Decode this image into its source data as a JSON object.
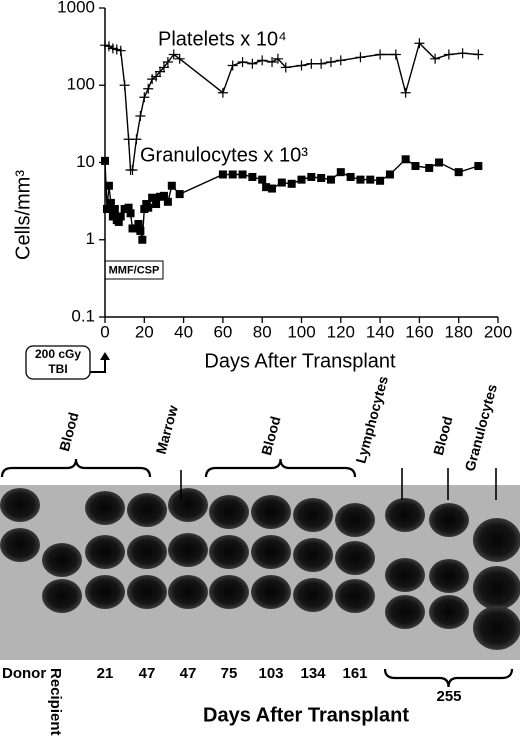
{
  "chart_data": {
    "type": "line",
    "y_label": "Cells/mm³",
    "x_label": "Days After Transplant",
    "xlim": [
      0,
      200
    ],
    "xticks": [
      0,
      20,
      40,
      60,
      80,
      100,
      120,
      140,
      160,
      180,
      200
    ],
    "ylim": [
      0.1,
      1000
    ],
    "yticks": [
      0.1,
      1,
      10,
      100,
      1000
    ],
    "log_y": true,
    "series": [
      {
        "name": "Platelets x 10⁴",
        "color": "#000000",
        "marker": "plus",
        "x": [
          0,
          2,
          4,
          6,
          8,
          10,
          12,
          13,
          14,
          16,
          18,
          20,
          22,
          24,
          26,
          28,
          30,
          32,
          35,
          38,
          60,
          65,
          70,
          75,
          80,
          85,
          88,
          92,
          100,
          105,
          110,
          115,
          120,
          130,
          140,
          148,
          153,
          160,
          168,
          175,
          182,
          190
        ],
        "values": [
          330,
          320,
          300,
          290,
          280,
          100,
          20,
          8,
          8,
          20,
          40,
          70,
          90,
          120,
          130,
          150,
          170,
          200,
          250,
          220,
          80,
          180,
          200,
          190,
          210,
          200,
          220,
          170,
          180,
          190,
          190,
          200,
          210,
          230,
          250,
          250,
          80,
          350,
          220,
          250,
          260,
          250
        ]
      },
      {
        "name": "Granulocytes x 10³",
        "color": "#000000",
        "marker": "square",
        "x": [
          0,
          1,
          2,
          3,
          4,
          5,
          6,
          7,
          8,
          10,
          12,
          13,
          14,
          16,
          17,
          18,
          19,
          20,
          21,
          22,
          24,
          26,
          28,
          30,
          32,
          34,
          38,
          60,
          65,
          70,
          75,
          80,
          82,
          85,
          90,
          95,
          100,
          105,
          110,
          115,
          120,
          125,
          130,
          135,
          140,
          145,
          153,
          158,
          165,
          170,
          180,
          190
        ],
        "values": [
          10.5,
          2.5,
          5,
          3,
          2,
          2.5,
          1.8,
          1.7,
          2,
          2.5,
          2.6,
          2.2,
          1.4,
          1.4,
          1.6,
          1.3,
          1,
          2.5,
          2.9,
          2.6,
          3.5,
          2.9,
          3.6,
          3.7,
          3.1,
          5,
          3.9,
          7,
          7,
          7,
          6.5,
          6,
          4.8,
          4.6,
          5.5,
          5.3,
          6,
          6.5,
          6.3,
          6,
          7.5,
          6.5,
          6,
          6,
          5.8,
          7,
          11,
          9,
          8.5,
          10,
          7.5,
          9
        ]
      }
    ],
    "annotations": {
      "treatment": "MMF/CSP",
      "conditioning": [
        "200 cGy",
        "TBI"
      ]
    }
  },
  "gel": {
    "top_labels": [
      "Blood",
      "Marrow",
      "Blood",
      "Lymphocytes",
      "Blood",
      "Granulocytes"
    ],
    "lanes": [
      "Donor",
      "Recipient",
      "21",
      "47",
      "47",
      "75",
      "103",
      "134",
      "161"
    ],
    "group_label": "255",
    "x_label": "Days After Transplant"
  }
}
